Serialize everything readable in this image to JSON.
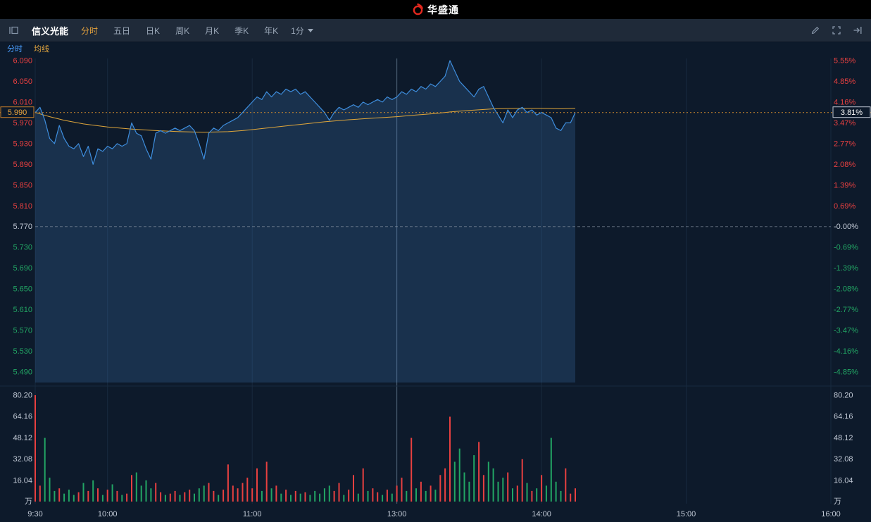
{
  "topbar": {
    "logo_text": "华盛通"
  },
  "toolbar": {
    "stock_name": "信义光能",
    "tabs": [
      {
        "label": "分时",
        "active": true
      },
      {
        "label": "五日",
        "active": false
      },
      {
        "label": "日K",
        "active": false
      },
      {
        "label": "周K",
        "active": false
      },
      {
        "label": "月K",
        "active": false
      },
      {
        "label": "季K",
        "active": false
      },
      {
        "label": "年K",
        "active": false
      }
    ],
    "interval": "1分"
  },
  "subtabs": [
    {
      "label": "分时",
      "color": "#4a9eff"
    },
    {
      "label": "均线",
      "color": "#e0a43e"
    }
  ],
  "chart_data": {
    "type": "line",
    "title": "信义光能 分时图",
    "prev_close": 5.77,
    "current_price": "5.990",
    "current_change_pct": "3.81%",
    "ylim": [
      5.49,
      6.09
    ],
    "price_axis": [
      6.09,
      6.05,
      6.01,
      5.97,
      5.93,
      5.89,
      5.85,
      5.81,
      5.77,
      5.73,
      5.69,
      5.65,
      5.61,
      5.57,
      5.53,
      5.49
    ],
    "pct_axis": [
      "5.55%",
      "4.85%",
      "4.16%",
      "3.47%",
      "2.77%",
      "2.08%",
      "1.39%",
      "0.69%",
      "-0.00%",
      "-0.69%",
      "-1.39%",
      "-2.08%",
      "-2.77%",
      "-3.47%",
      "-4.16%",
      "-4.85%"
    ],
    "volume_axis": [
      "80.20",
      "64.16",
      "48.12",
      "32.08",
      "16.04"
    ],
    "volume_unit": "万",
    "vol_max": 80.2,
    "session_minutes": 330,
    "session_divider_min": 150,
    "grid_minutes": [
      0,
      30,
      90,
      150,
      210,
      270,
      330
    ],
    "time_axis": [
      {
        "m": 0,
        "label": "9:30"
      },
      {
        "m": 30,
        "label": "10:00"
      },
      {
        "m": 90,
        "label": "11:00"
      },
      {
        "m": 150,
        "label": "13:00"
      },
      {
        "m": 210,
        "label": "14:00"
      },
      {
        "m": 270,
        "label": "15:00"
      },
      {
        "m": 330,
        "label": "16:00"
      }
    ],
    "step_min": 2,
    "prices": [
      5.99,
      6.0,
      5.975,
      5.94,
      5.93,
      5.965,
      5.94,
      5.925,
      5.92,
      5.93,
      5.905,
      5.925,
      5.89,
      5.92,
      5.915,
      5.925,
      5.92,
      5.93,
      5.925,
      5.93,
      5.97,
      5.95,
      5.945,
      5.92,
      5.9,
      5.95,
      5.955,
      5.95,
      5.955,
      5.96,
      5.955,
      5.96,
      5.965,
      5.955,
      5.93,
      5.9,
      5.95,
      5.96,
      5.955,
      5.965,
      5.97,
      5.975,
      5.98,
      5.99,
      6.0,
      6.01,
      6.02,
      6.015,
      6.03,
      6.02,
      6.03,
      6.025,
      6.035,
      6.03,
      6.035,
      6.025,
      6.03,
      6.02,
      6.01,
      6.0,
      5.99,
      5.975,
      5.99,
      6.0,
      5.995,
      6.0,
      6.005,
      6.0,
      6.01,
      6.005,
      6.01,
      6.015,
      6.01,
      6.02,
      6.015,
      6.02,
      6.03,
      6.025,
      6.035,
      6.03,
      6.04,
      6.035,
      6.045,
      6.04,
      6.05,
      6.06,
      6.09,
      6.07,
      6.05,
      6.04,
      6.03,
      6.02,
      6.035,
      6.04,
      6.02,
      6.0,
      5.985,
      5.97,
      5.995,
      5.98,
      5.995,
      6.0,
      5.99,
      5.995,
      5.985,
      5.99,
      5.985,
      5.98,
      5.96,
      5.955,
      5.97,
      5.97,
      5.99
    ],
    "volumes": [
      80.2,
      12,
      48,
      18,
      8,
      10,
      6,
      9,
      5,
      7,
      14,
      8,
      16,
      10,
      5,
      9,
      13,
      8,
      5,
      6,
      20,
      22,
      12,
      16,
      10,
      14,
      7,
      5,
      6,
      8,
      5,
      7,
      9,
      6,
      10,
      12,
      14,
      8,
      5,
      9,
      28,
      12,
      10,
      14,
      18,
      10,
      25,
      8,
      30,
      10,
      12,
      6,
      9,
      5,
      8,
      6,
      7,
      5,
      8,
      6,
      10,
      12,
      8,
      14,
      5,
      9,
      20,
      6,
      25,
      8,
      10,
      7,
      5,
      9,
      6,
      12,
      18,
      8,
      48,
      10,
      15,
      8,
      12,
      9,
      20,
      25,
      64,
      30,
      40,
      22,
      15,
      35,
      45,
      20,
      30,
      25,
      15,
      18,
      22,
      10,
      12,
      32,
      14,
      8,
      10,
      20,
      12,
      48,
      15,
      8,
      25,
      6,
      10
    ],
    "avg_points": [
      [
        0,
        5.99
      ],
      [
        6,
        5.982
      ],
      [
        12,
        5.975
      ],
      [
        20,
        5.968
      ],
      [
        30,
        5.962
      ],
      [
        40,
        5.958
      ],
      [
        50,
        5.955
      ],
      [
        60,
        5.953
      ],
      [
        70,
        5.952
      ],
      [
        80,
        5.953
      ],
      [
        86,
        5.955
      ],
      [
        90,
        5.957
      ],
      [
        96,
        5.96
      ],
      [
        104,
        5.964
      ],
      [
        112,
        5.968
      ],
      [
        120,
        5.972
      ],
      [
        130,
        5.976
      ],
      [
        140,
        5.979
      ],
      [
        150,
        5.982
      ],
      [
        158,
        5.985
      ],
      [
        166,
        5.988
      ],
      [
        172,
        5.991
      ],
      [
        180,
        5.994
      ],
      [
        190,
        5.997
      ],
      [
        200,
        5.998
      ],
      [
        210,
        5.998
      ],
      [
        218,
        5.997
      ],
      [
        224,
        5.998
      ]
    ],
    "colors": {
      "up": "#e84040",
      "down": "#22a564",
      "neutral": "#c2cad6",
      "line": "#3e8ede",
      "fill": "rgba(70,130,200,0.22)",
      "avg": "#dfa63b",
      "current": "#cf8a2d",
      "grid": "#182a3f",
      "divider": "#55697e",
      "bg": "#0d1a2b"
    }
  }
}
